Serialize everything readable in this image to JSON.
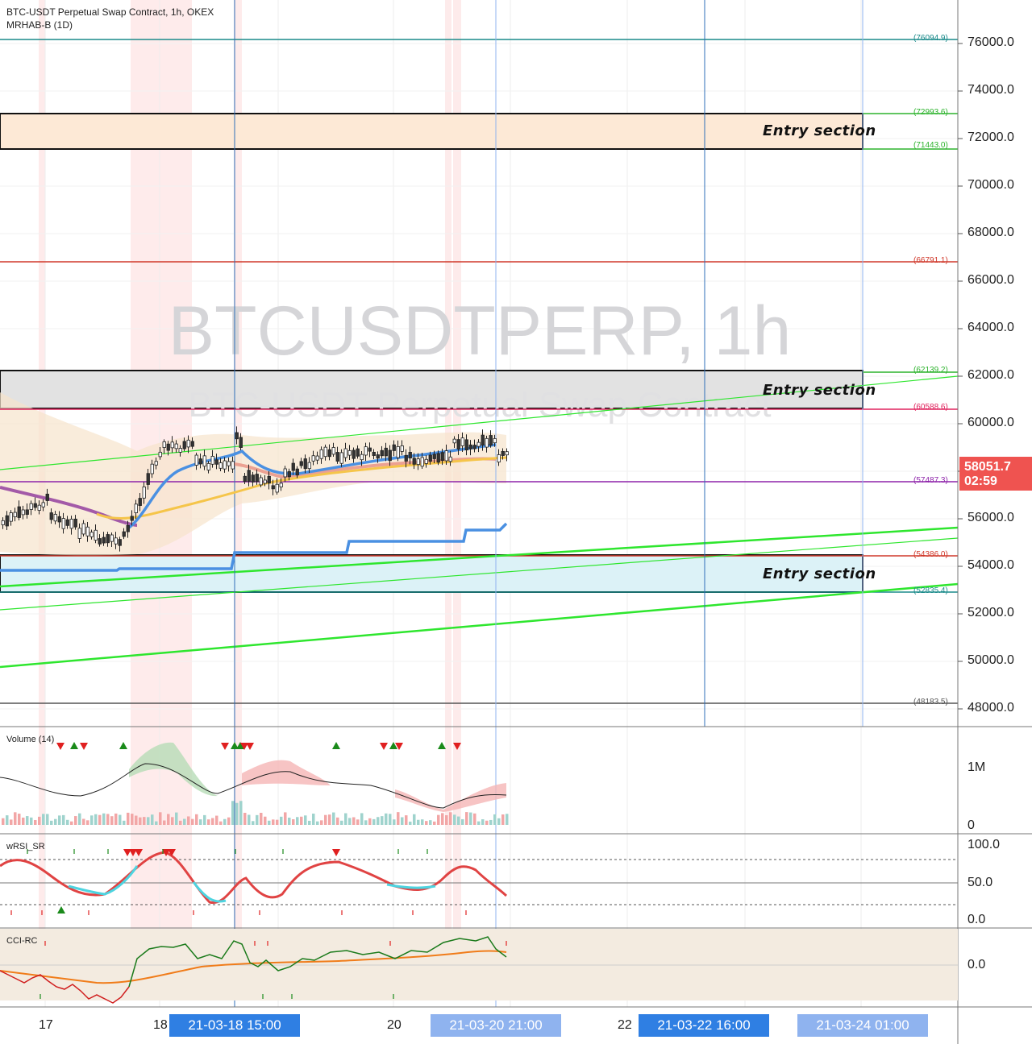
{
  "header": {
    "symbol_title": "BTC-USDT Perpetual Swap Contract, 1h, OKEX",
    "indicator": "MRHAB-B (1D)"
  },
  "watermark": {
    "symbol": "BTCUSDTPERP, 1h",
    "description": "BTC-USDT Perpetual Swap Contract"
  },
  "price_axis": {
    "ticks": [
      "76000.0",
      "74000.0",
      "72000.0",
      "70000.0",
      "68000.0",
      "66000.0",
      "64000.0",
      "62000.0",
      "60000.0",
      "58000.0",
      "56000.0",
      "54000.0",
      "52000.0",
      "50000.0",
      "48000.0"
    ],
    "current_price": "58051.7",
    "countdown": "02:59"
  },
  "levels": [
    {
      "label": "(76094.9)",
      "color": "#1a8a8a"
    },
    {
      "label": "(72993.6)",
      "color": "#2db32d"
    },
    {
      "label": "(71443.0)",
      "color": "#2db32d"
    },
    {
      "label": "(66791.1)",
      "color": "#d0392b"
    },
    {
      "label": "(62139.2)",
      "color": "#2db32d"
    },
    {
      "label": "(60588.6)",
      "color": "#e0245e"
    },
    {
      "label": "(57487.3)",
      "color": "#8e24aa"
    },
    {
      "label": "(54386.0)",
      "color": "#d0392b"
    },
    {
      "label": "(52835.4)",
      "color": "#1a8a8a"
    },
    {
      "label": "(48183.5)",
      "color": "#555555"
    }
  ],
  "entry_sections": [
    "Entry section",
    "Entry section",
    "Entry section"
  ],
  "panes": {
    "volume": {
      "label": "Volume (14)",
      "ticks": [
        "1M",
        "0"
      ]
    },
    "wrsi": {
      "label": "wRSI_SR",
      "ticks": [
        "100.0",
        "50.0",
        "0.0"
      ]
    },
    "cci": {
      "label": "CCI-RC",
      "ticks": [
        "0.0"
      ]
    }
  },
  "time_axis": {
    "ticks": [
      "17",
      "18",
      "20",
      "22"
    ],
    "crosshair_labels": [
      "21-03-18   15:00",
      "21-03-20   21:00",
      "21-03-22   16:00",
      "21-03-24   01:00"
    ]
  },
  "colors": {
    "up": "#26a69a",
    "down": "#ef5350",
    "trend": "#2ee62e",
    "blue_line": "#4a90e2"
  }
}
